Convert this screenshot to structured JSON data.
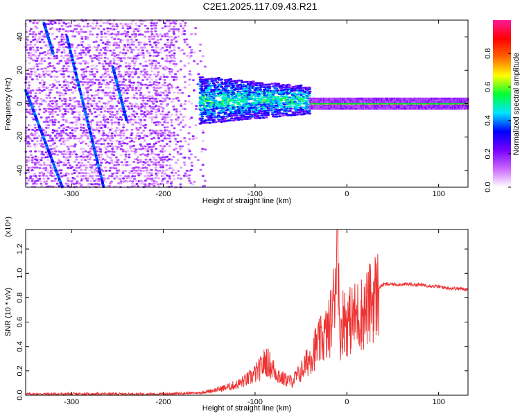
{
  "title": "C2E1.2025.117.09.43.R21",
  "chart_data": [
    {
      "type": "heatmap",
      "name": "spectrogram",
      "xlabel": "Height of straight line (km)",
      "ylabel": "Frequency (Hz)",
      "xlim": [
        -350,
        132
      ],
      "ylim": [
        -50,
        50
      ],
      "xticks": [
        -300,
        -200,
        -100,
        0,
        100
      ],
      "yticks": [
        -40,
        -20,
        0,
        20,
        40
      ],
      "colorbar": {
        "label": "Normalized spectral amplitude",
        "ticks": [
          0.0,
          0.2,
          0.4,
          0.6,
          0.8
        ],
        "range": [
          0,
          1
        ],
        "colors": [
          "#ffffff",
          "#cc66ff",
          "#7700ff",
          "#0000ff",
          "#00e5ff",
          "#00ff33",
          "#ffff00",
          "#ff6600",
          "#ff0000",
          "#ff1a99"
        ]
      },
      "features": {
        "noise_region_km": [
          -350,
          -155
        ],
        "signal_cluster_km": [
          -160,
          -40
        ],
        "carrier_start_km": -40,
        "carrier_frequency_hz": 0
      }
    },
    {
      "type": "line",
      "name": "snr",
      "xlabel": "Height of straight line (km)",
      "ylabel": "SNR (10 * v/v)",
      "yscale_label": "(x10⁴)",
      "xlim": [
        -350,
        132
      ],
      "ylim": [
        0,
        1.36
      ],
      "xticks": [
        -300,
        -200,
        -100,
        0,
        100
      ],
      "yticks": [
        0.0,
        0.2,
        0.4,
        0.6,
        0.8,
        1.0,
        1.2
      ],
      "color": "#ee3333",
      "series": {
        "name": "SNR",
        "x": [
          -350,
          -200,
          -160,
          -140,
          -120,
          -105,
          -95,
          -88,
          -80,
          -70,
          -60,
          -50,
          -42,
          -35,
          -25,
          -20,
          -15,
          -10,
          -8,
          -6,
          -3,
          0,
          10,
          20,
          30,
          40,
          50,
          70,
          90,
          110,
          132
        ],
        "y": [
          0.01,
          0.01,
          0.02,
          0.05,
          0.09,
          0.15,
          0.22,
          0.3,
          0.22,
          0.14,
          0.12,
          0.2,
          0.3,
          0.4,
          0.5,
          0.55,
          0.75,
          1.36,
          0.5,
          0.6,
          0.68,
          0.62,
          0.68,
          0.72,
          0.85,
          0.91,
          0.91,
          0.91,
          0.9,
          0.88,
          0.87
        ]
      }
    }
  ]
}
